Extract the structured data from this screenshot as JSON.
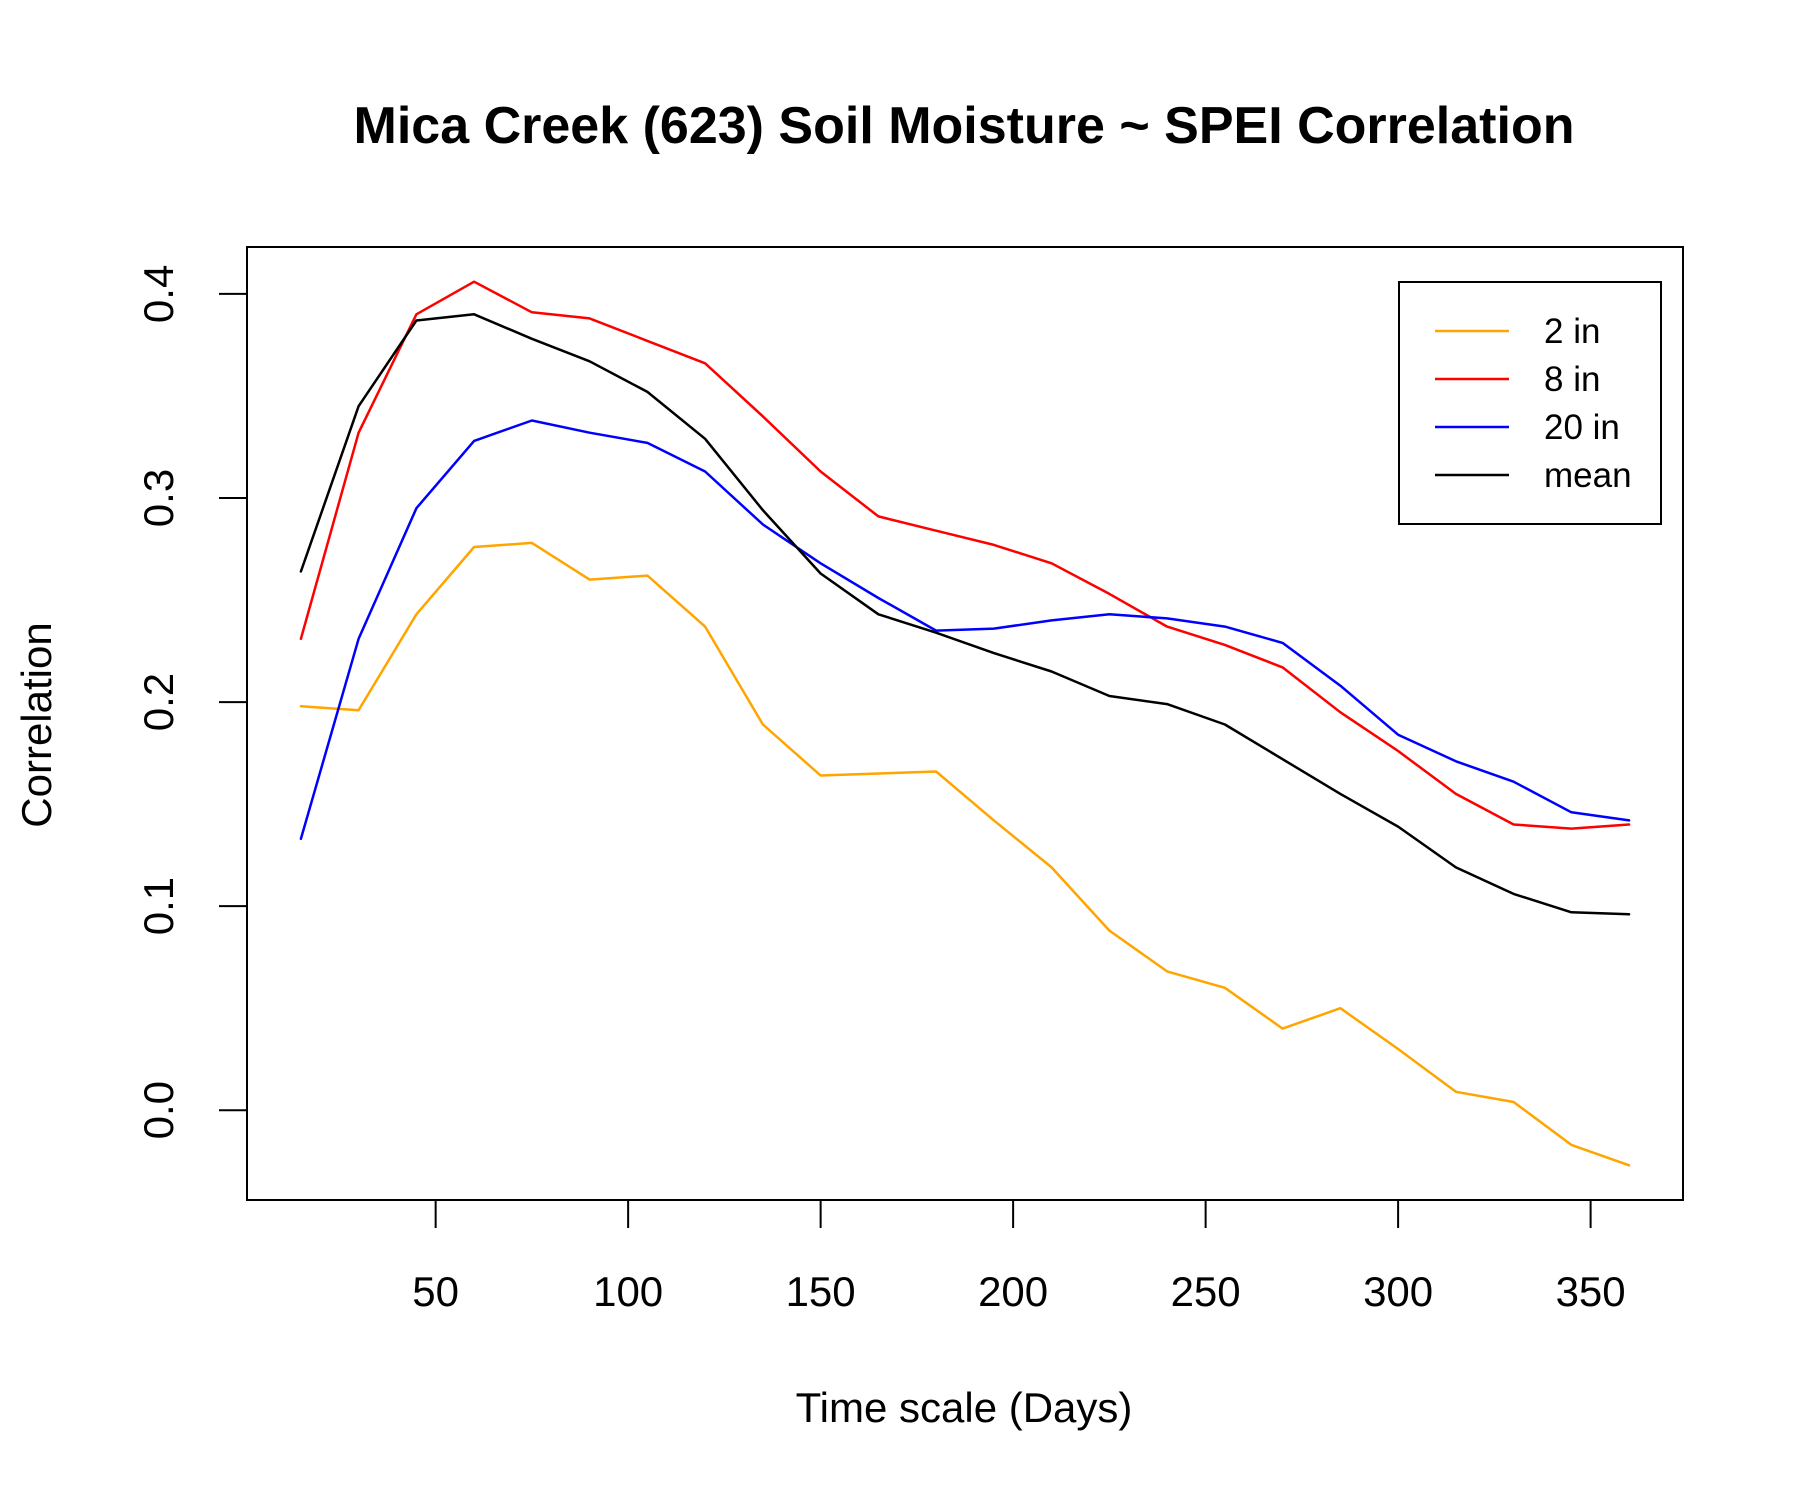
{
  "chart_data": {
    "type": "line",
    "title": "Mica Creek (623) Soil Moisture ~ SPEI Correlation",
    "xlabel": "Time scale (Days)",
    "ylabel": "Correlation",
    "xlim": [
      1,
      374
    ],
    "ylim": [
      -0.044,
      0.423
    ],
    "x_ticks": [
      50,
      100,
      150,
      200,
      250,
      300,
      350
    ],
    "y_ticks": [
      0.0,
      0.1,
      0.2,
      0.3,
      0.4
    ],
    "x_tick_labels": [
      "50",
      "100",
      "150",
      "200",
      "250",
      "300",
      "350"
    ],
    "y_tick_labels": [
      "0.0",
      "0.1",
      "0.2",
      "0.3",
      "0.4"
    ],
    "grid": false,
    "legend_position": "top-right",
    "x": [
      15,
      30,
      45,
      60,
      75,
      90,
      105,
      120,
      135,
      150,
      165,
      180,
      195,
      210,
      225,
      240,
      255,
      270,
      285,
      300,
      315,
      330,
      345,
      360
    ],
    "series": [
      {
        "name": "2 in",
        "color": "#FFA500",
        "values": [
          0.198,
          0.196,
          0.243,
          0.276,
          0.278,
          0.26,
          0.262,
          0.237,
          0.189,
          0.164,
          0.165,
          0.166,
          0.142,
          0.119,
          0.088,
          0.068,
          0.06,
          0.04,
          0.05,
          0.03,
          0.009,
          0.004,
          -0.017,
          -0.027
        ]
      },
      {
        "name": "8 in",
        "color": "#FF0000",
        "values": [
          0.231,
          0.332,
          0.39,
          0.406,
          0.391,
          0.388,
          0.377,
          0.366,
          0.34,
          0.313,
          0.291,
          0.284,
          0.277,
          0.268,
          0.253,
          0.237,
          0.228,
          0.217,
          0.195,
          0.176,
          0.155,
          0.14,
          0.138,
          0.14
        ]
      },
      {
        "name": "20 in",
        "color": "#0000FF",
        "values": [
          0.133,
          0.231,
          0.295,
          0.328,
          0.338,
          0.332,
          0.327,
          0.313,
          0.287,
          0.268,
          0.251,
          0.235,
          0.236,
          0.24,
          0.243,
          0.241,
          0.237,
          0.229,
          0.208,
          0.184,
          0.171,
          0.161,
          0.146,
          0.142
        ]
      },
      {
        "name": "mean",
        "color": "#000000",
        "values": [
          0.264,
          0.345,
          0.387,
          0.39,
          0.378,
          0.367,
          0.352,
          0.329,
          0.294,
          0.263,
          0.243,
          0.234,
          0.224,
          0.215,
          0.203,
          0.199,
          0.189,
          0.172,
          0.155,
          0.139,
          0.119,
          0.106,
          0.097,
          0.096
        ]
      }
    ]
  }
}
